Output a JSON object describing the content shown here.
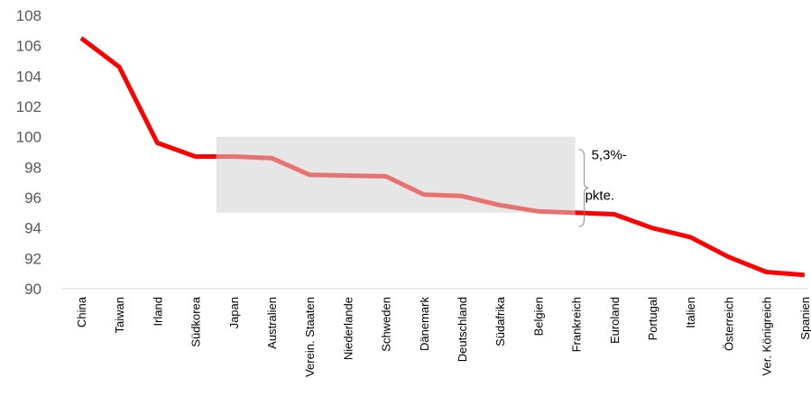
{
  "chart_data": {
    "type": "line",
    "categories": [
      "China",
      "Taiwan",
      "Irland",
      "Südkorea",
      "Japan",
      "Australien",
      "Verein. Staaten",
      "Niederlande",
      "Schweden",
      "Dänemark",
      "Deutschland",
      "Südafrika",
      "Belgien",
      "Frankreich",
      "Euroland",
      "Portugal",
      "Italien",
      "Österreich",
      "Ver. Königreich",
      "Spanien"
    ],
    "series": [
      {
        "values": [
          106.5,
          104.6,
          99.6,
          98.7,
          98.7,
          98.6,
          97.5,
          97.45,
          97.4,
          96.2,
          96.1,
          95.5,
          95.1,
          95.0,
          94.9,
          94.0,
          93.4,
          92.1,
          91.1,
          90.9
        ]
      }
    ],
    "ylim": [
      90,
      108
    ],
    "yticks": [
      90,
      92,
      94,
      96,
      98,
      100,
      102,
      104,
      106,
      108
    ],
    "grid": false,
    "line_color": "#ff0000",
    "highlight_line_color": "#e87272",
    "highlight_box_color": "#e6e6e6",
    "highlight_range": {
      "from": "Japan",
      "to": "Frankreich",
      "ymin": 95,
      "ymax": 100
    },
    "annotation": {
      "line1": "5,3%-",
      "line2": "pkte."
    }
  }
}
